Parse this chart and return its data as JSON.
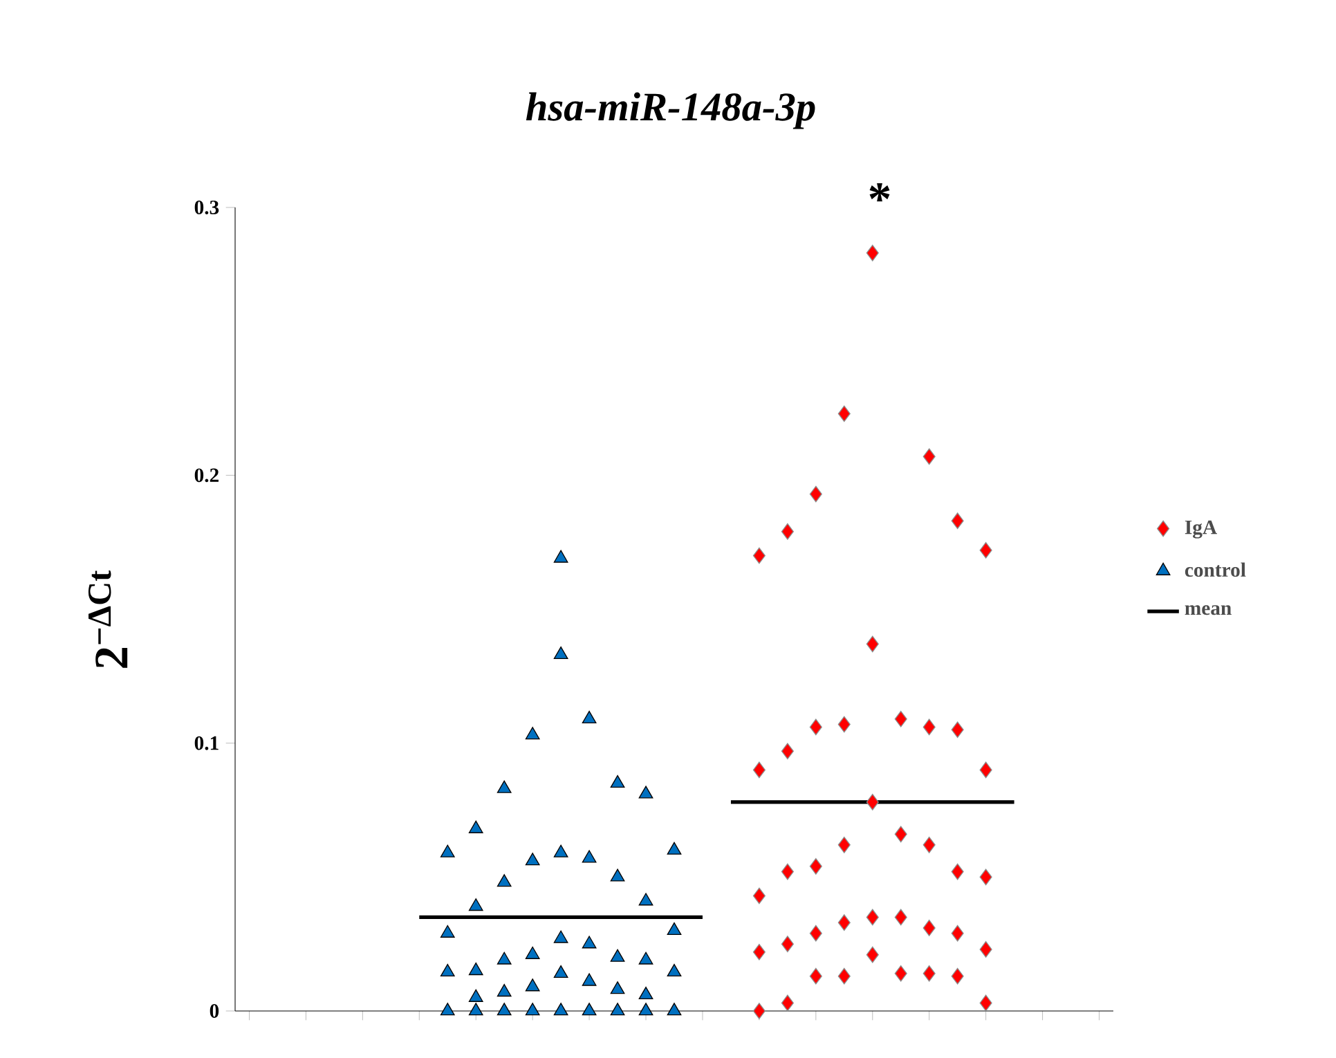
{
  "chart_data": {
    "type": "scatter",
    "title": "hsa-miR-148a-3p",
    "ylabel": "2$^{−ΔCt}$",
    "categories": [
      null,
      null,
      null,
      null,
      null,
      null,
      null,
      null,
      null,
      null,
      null,
      null,
      null,
      null,
      null,
      null,
      null,
      null,
      null,
      null,
      null,
      null,
      null,
      null,
      null,
      null,
      null,
      null,
      null,
      null,
      null
    ],
    "ylim": [
      0,
      0.3
    ],
    "yticks": [
      0,
      0.1,
      0.2,
      0.3
    ],
    "tick_labels": "y",
    "legend": "right",
    "annotations": [
      "*"
    ],
    "series": [
      {
        "name": "IgA",
        "color": "#ff0000",
        "marker": "diamond",
        "values": [
          null,
          null,
          null,
          null,
          null,
          null,
          null,
          null,
          null,
          null,
          null,
          null,
          null,
          null,
          null,
          null,
          null,
          null,
          0,
          0.003,
          0.013,
          0.013,
          0.021,
          0.014,
          0.014,
          0.013,
          0.003,
          null,
          null,
          null,
          null
        ]
      },
      {
        "color": "#ff0000",
        "marker": "diamond",
        "values": [
          null,
          null,
          null,
          null,
          null,
          null,
          null,
          null,
          null,
          null,
          null,
          null,
          null,
          null,
          null,
          null,
          null,
          null,
          0.022,
          0.025,
          0.029,
          0.033,
          0.035,
          0.035,
          0.031,
          0.029,
          0.023,
          null,
          null,
          null,
          null
        ]
      },
      {
        "color": "#ff0000",
        "marker": "diamond",
        "values": [
          null,
          null,
          null,
          null,
          null,
          null,
          null,
          null,
          null,
          null,
          null,
          null,
          null,
          null,
          null,
          null,
          null,
          null,
          0.043,
          0.052,
          0.054,
          0.062,
          0.078,
          0.066,
          0.062,
          0.052,
          0.05,
          null,
          null,
          null,
          null
        ]
      },
      {
        "color": "#ff0000",
        "marker": "diamond",
        "values": [
          null,
          null,
          null,
          null,
          null,
          null,
          null,
          null,
          null,
          null,
          null,
          null,
          null,
          null,
          null,
          null,
          null,
          null,
          0.09,
          0.097,
          0.106,
          0.107,
          0.137,
          0.109,
          0.106,
          0.105,
          0.09,
          null,
          null,
          null,
          null
        ]
      },
      {
        "color": "#ff0000",
        "marker": "diamond",
        "values": [
          null,
          null,
          null,
          null,
          null,
          null,
          null,
          null,
          null,
          null,
          null,
          null,
          null,
          null,
          null,
          null,
          null,
          null,
          0.17,
          0.179,
          0.193,
          0.223,
          0.283,
          null,
          0.207,
          0.183,
          0.172,
          null,
          null,
          null,
          null
        ]
      },
      {
        "name": "control",
        "color": "#0070c0",
        "marker": "triangle",
        "values": [
          null,
          null,
          null,
          null,
          null,
          null,
          null,
          0,
          0,
          0,
          0,
          0,
          0,
          0,
          0,
          0,
          null,
          null,
          null,
          null,
          null,
          null,
          null,
          null,
          null,
          null,
          null,
          null,
          null,
          null,
          null
        ]
      },
      {
        "color": "#0070c0",
        "marker": "triangle",
        "values": [
          null,
          null,
          null,
          null,
          null,
          null,
          null,
          0.0145,
          0.005,
          0.007,
          0.009,
          0.014,
          0.011,
          0.008,
          0.006,
          0.0145,
          null,
          null,
          null,
          null,
          null,
          null,
          null,
          null,
          null,
          null,
          null,
          null,
          null,
          null,
          null
        ]
      },
      {
        "color": "#0070c0",
        "marker": "triangle",
        "values": [
          null,
          null,
          null,
          null,
          null,
          null,
          null,
          0.029,
          0.015,
          0.019,
          0.021,
          0.027,
          0.025,
          0.02,
          0.019,
          0.03,
          null,
          null,
          null,
          null,
          null,
          null,
          null,
          null,
          null,
          null,
          null,
          null,
          null,
          null,
          null
        ]
      },
      {
        "color": "#0070c0",
        "marker": "triangle",
        "values": [
          null,
          null,
          null,
          null,
          null,
          null,
          null,
          0.059,
          0.039,
          0.048,
          0.056,
          0.059,
          0.057,
          0.05,
          0.041,
          0.06,
          null,
          null,
          null,
          null,
          null,
          null,
          null,
          null,
          null,
          null,
          null,
          null,
          null,
          null,
          null
        ]
      },
      {
        "color": "#0070c0",
        "marker": "triangle",
        "values": [
          null,
          null,
          null,
          null,
          null,
          null,
          null,
          null,
          0.068,
          0.083,
          0.103,
          0.133,
          0.109,
          0.085,
          0.081,
          null,
          null,
          null,
          null,
          null,
          null,
          null,
          null,
          null,
          null,
          null,
          null,
          null,
          null,
          null,
          null
        ]
      },
      {
        "color": "#0070c0",
        "marker": "triangle",
        "values": [
          null,
          null,
          null,
          null,
          null,
          null,
          null,
          null,
          null,
          null,
          null,
          0.169,
          null,
          null,
          null,
          null,
          null,
          null,
          null,
          null,
          null,
          null,
          null,
          null,
          null,
          null,
          null,
          null,
          null,
          null,
          null
        ]
      },
      {
        "name": "mean",
        "type": "line",
        "color": "#000000",
        "marker": "none",
        "line_style": "solid",
        "values": [
          null,
          null,
          null,
          null,
          null,
          null,
          0.035,
          0.035,
          0.035,
          0.035,
          0.035,
          0.035,
          0.035,
          0.035,
          0.035,
          0.035,
          0.035,
          null,
          null,
          null,
          null,
          null,
          null,
          null,
          null,
          null,
          null,
          null,
          null,
          null,
          null
        ]
      },
      {
        "type": "line",
        "color": "#000000",
        "marker": "none",
        "line_style": "solid",
        "values": [
          null,
          null,
          null,
          null,
          null,
          null,
          null,
          null,
          null,
          null,
          null,
          null,
          null,
          null,
          null,
          null,
          null,
          0.078,
          0.078,
          0.078,
          0.078,
          0.078,
          0.078,
          0.078,
          0.078,
          0.078,
          0.078,
          0.078,
          null,
          null,
          null
        ]
      }
    ]
  }
}
